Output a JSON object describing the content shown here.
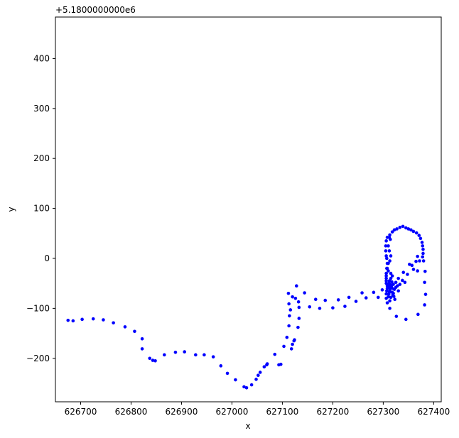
{
  "chart_data": {
    "type": "scatter",
    "title": "",
    "xlabel": "x",
    "ylabel": "y",
    "y_offset_label": "+5.1800000000e6",
    "xlim": [
      626650,
      627415
    ],
    "ylim": [
      -287,
      483
    ],
    "x_ticks": [
      626700,
      626800,
      626900,
      627000,
      627100,
      627200,
      627300,
      627400
    ],
    "y_ticks": [
      -200,
      -100,
      0,
      100,
      200,
      300,
      400
    ],
    "grid": false,
    "legend": "none",
    "marker_color": "#0000ff",
    "series": [
      {
        "points": [
          [
            626675,
            -124
          ],
          [
            626685,
            -125
          ],
          [
            626703,
            -122
          ],
          [
            626725,
            -121
          ],
          [
            626745,
            -123
          ],
          [
            626765,
            -129
          ],
          [
            626788,
            -137
          ],
          [
            626807,
            -146
          ],
          [
            626822,
            -161
          ],
          [
            626822,
            -181
          ],
          [
            626837,
            -200
          ],
          [
            626843,
            -204
          ],
          [
            626848,
            -205
          ],
          [
            626866,
            -193
          ],
          [
            626888,
            -188
          ],
          [
            626906,
            -187
          ],
          [
            626928,
            -193
          ],
          [
            626945,
            -193
          ],
          [
            626963,
            -197
          ],
          [
            626978,
            -215
          ],
          [
            626991,
            -230
          ],
          [
            627007,
            -243
          ],
          [
            627024,
            -257
          ],
          [
            627029,
            -259
          ],
          [
            627039,
            -253
          ],
          [
            627048,
            -242
          ],
          [
            627052,
            -234
          ],
          [
            627056,
            -228
          ],
          [
            627064,
            -217
          ],
          [
            627069,
            -213
          ],
          [
            627070,
            -211
          ],
          [
            627085,
            -192
          ],
          [
            627093,
            -213
          ],
          [
            627097,
            -212
          ],
          [
            627103,
            -176
          ],
          [
            627109,
            -158
          ],
          [
            627113,
            -135
          ],
          [
            627114,
            -115
          ],
          [
            627118,
            -181
          ],
          [
            627120,
            -172
          ],
          [
            627123,
            -165
          ],
          [
            627124,
            -163
          ],
          [
            627131,
            -138
          ],
          [
            627133,
            -120
          ],
          [
            627133,
            -98
          ],
          [
            627128,
            -55
          ],
          [
            627112,
            -70
          ],
          [
            627113,
            -91
          ],
          [
            627116,
            -103
          ],
          [
            627120,
            -77
          ],
          [
            627126,
            -80
          ],
          [
            627132,
            -87
          ],
          [
            627144,
            -69
          ],
          [
            627154,
            -97
          ],
          [
            627166,
            -82
          ],
          [
            627174,
            -100
          ],
          [
            627185,
            -84
          ],
          [
            627200,
            -99
          ],
          [
            627211,
            -83
          ],
          [
            627224,
            -96
          ],
          [
            627232,
            -78
          ],
          [
            627246,
            -86
          ],
          [
            627258,
            -69
          ],
          [
            627266,
            -79
          ],
          [
            627281,
            -68
          ],
          [
            627290,
            -78
          ],
          [
            627298,
            -63
          ],
          [
            627306,
            -80
          ],
          [
            627306,
            -71
          ],
          [
            627307,
            -65
          ],
          [
            627308,
            -60
          ],
          [
            627308,
            -55
          ],
          [
            627306,
            -50
          ],
          [
            627306,
            -45
          ],
          [
            627306,
            -40
          ],
          [
            627306,
            -35
          ],
          [
            627306,
            -30
          ],
          [
            627307,
            -20
          ],
          [
            627308,
            -10
          ],
          [
            627307,
            0
          ],
          [
            627306,
            5
          ],
          [
            627305,
            15
          ],
          [
            627305,
            25
          ],
          [
            627306,
            35
          ],
          [
            627308,
            42
          ],
          [
            627313,
            47
          ],
          [
            627318,
            53
          ],
          [
            627322,
            57
          ],
          [
            627327,
            59
          ],
          [
            627333,
            62
          ],
          [
            627339,
            64
          ],
          [
            627345,
            61
          ],
          [
            627350,
            59
          ],
          [
            627355,
            57
          ],
          [
            627360,
            54
          ],
          [
            627366,
            51
          ],
          [
            627371,
            46
          ],
          [
            627374,
            40
          ],
          [
            627377,
            32
          ],
          [
            627378,
            25
          ],
          [
            627379,
            18
          ],
          [
            627379,
            10
          ],
          [
            627378,
            3
          ],
          [
            627380,
            -5
          ],
          [
            627383,
            -26
          ],
          [
            627382,
            -48
          ],
          [
            627384,
            -72
          ],
          [
            627382,
            -93
          ],
          [
            627369,
            -112
          ],
          [
            627345,
            -122
          ],
          [
            627326,
            -116
          ],
          [
            627313,
            -100
          ],
          [
            627308,
            -89
          ],
          [
            627310,
            -77
          ],
          [
            627311,
            -72
          ],
          [
            627312,
            -68
          ],
          [
            627313,
            -65
          ],
          [
            627313,
            -60
          ],
          [
            627312,
            -57
          ],
          [
            627310,
            -55
          ],
          [
            627311,
            -50
          ],
          [
            627312,
            -45
          ],
          [
            627315,
            -30
          ],
          [
            627310,
            -25
          ],
          [
            627308,
            -20
          ],
          [
            627310,
            -10
          ],
          [
            627313,
            -5
          ],
          [
            627315,
            5
          ],
          [
            627312,
            15
          ],
          [
            627310,
            25
          ],
          [
            627314,
            38
          ],
          [
            627312,
            42
          ],
          [
            627318,
            -68
          ],
          [
            627323,
            -82
          ],
          [
            627320,
            -70
          ],
          [
            627315,
            -78
          ],
          [
            627313,
            -85
          ],
          [
            627325,
            -58
          ],
          [
            627328,
            -55
          ],
          [
            627330,
            -65
          ],
          [
            627333,
            -52
          ],
          [
            627338,
            -44
          ],
          [
            627343,
            -48
          ],
          [
            627340,
            -28
          ],
          [
            627348,
            -32
          ],
          [
            627352,
            -12
          ],
          [
            627357,
            -14
          ],
          [
            627365,
            -6
          ],
          [
            627368,
            4
          ],
          [
            627372,
            -5
          ],
          [
            627360,
            -22
          ],
          [
            627368,
            -25
          ],
          [
            627330,
            -40
          ],
          [
            627325,
            -48
          ],
          [
            627320,
            -52
          ],
          [
            627315,
            -40
          ],
          [
            627318,
            -35
          ],
          [
            627322,
            -62
          ],
          [
            627318,
            -60
          ],
          [
            627316,
            -56
          ],
          [
            627314,
            -52
          ],
          [
            627317,
            -47
          ],
          [
            627319,
            -73
          ],
          [
            627321,
            -76
          ]
        ]
      }
    ]
  }
}
